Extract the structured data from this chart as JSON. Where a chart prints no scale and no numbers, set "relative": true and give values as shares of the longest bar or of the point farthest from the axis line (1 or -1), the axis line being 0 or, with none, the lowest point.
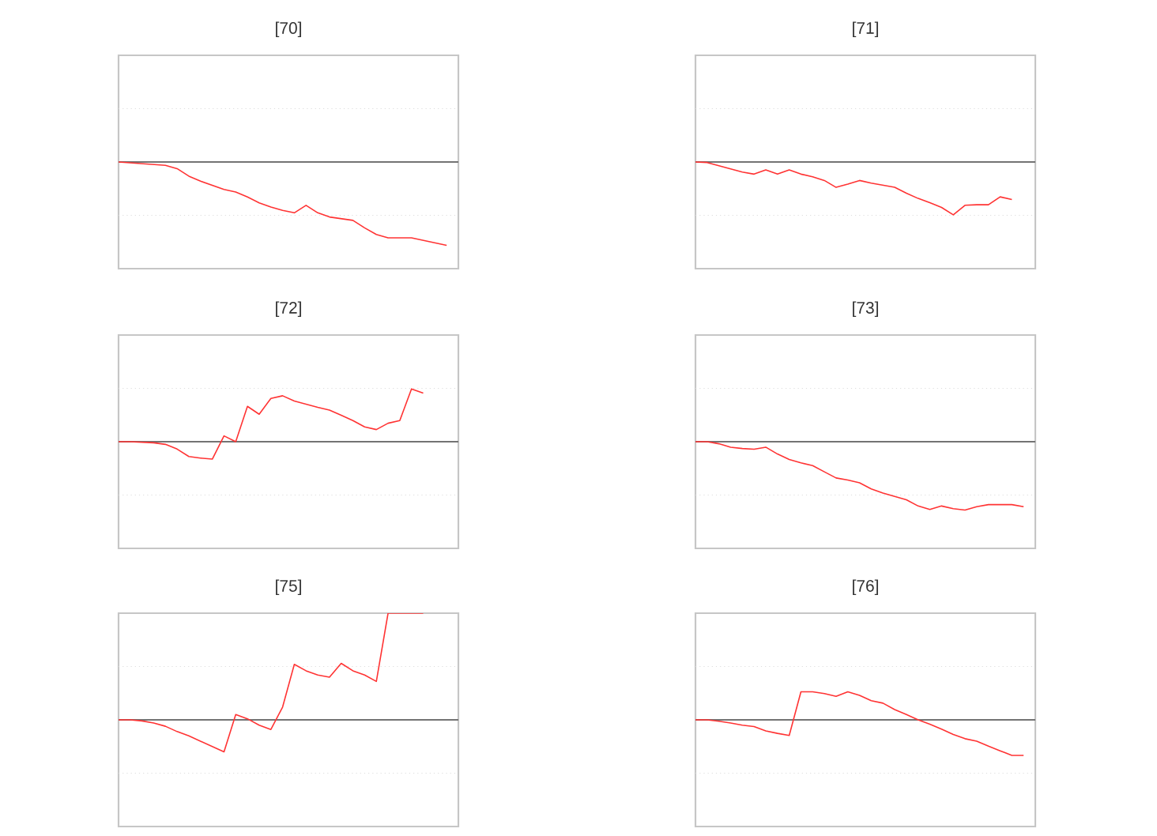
{
  "chart_data": [
    {
      "type": "line",
      "title": "[70]",
      "relative": true,
      "ref_lines": [
        {
          "axis": "y",
          "value": 0.64,
          "color": "#dddddd",
          "line_style": "dotted"
        },
        {
          "axis": "y",
          "value": -0.64,
          "color": "#dddddd",
          "line_style": "dotted"
        }
      ],
      "color": "#ff3333",
      "categories": [
        null,
        null,
        null,
        null,
        null,
        null,
        null,
        null,
        null,
        null,
        null,
        null,
        null,
        null,
        null,
        null,
        null,
        null,
        null,
        null,
        null,
        null,
        null,
        null,
        null,
        null,
        null,
        null,
        null,
        null
      ],
      "values": [
        0,
        -0.01,
        -0.02,
        -0.03,
        -0.04,
        -0.08,
        -0.17,
        -0.23,
        -0.28,
        -0.33,
        -0.36,
        -0.42,
        -0.49,
        -0.54,
        -0.58,
        -0.61,
        -0.52,
        -0.61,
        -0.66,
        -0.68,
        -0.7,
        -0.79,
        -0.87,
        -0.91,
        -0.91,
        -0.91,
        -0.94,
        -0.97,
        -1,
        null
      ]
    },
    {
      "type": "line",
      "title": "[71]",
      "relative": true,
      "ref_lines": [
        {
          "axis": "y",
          "value": 1.01,
          "color": "#dddddd",
          "line_style": "dotted"
        },
        {
          "axis": "y",
          "value": -1.01,
          "color": "#dddddd",
          "line_style": "dotted"
        }
      ],
      "color": "#ff3333",
      "categories": [
        null,
        null,
        null,
        null,
        null,
        null,
        null,
        null,
        null,
        null,
        null,
        null,
        null,
        null,
        null,
        null,
        null,
        null,
        null,
        null,
        null,
        null,
        null,
        null,
        null,
        null,
        null,
        null,
        null,
        null
      ],
      "values": [
        0,
        -0.01,
        -0.07,
        -0.13,
        -0.19,
        -0.23,
        -0.15,
        -0.23,
        -0.15,
        -0.23,
        -0.28,
        -0.35,
        -0.48,
        -0.42,
        -0.35,
        -0.4,
        -0.44,
        -0.48,
        -0.59,
        -0.69,
        -0.77,
        -0.86,
        -1,
        -0.82,
        -0.81,
        -0.81,
        -0.66,
        -0.71,
        null,
        null
      ]
    },
    {
      "type": "line",
      "title": "[72]",
      "relative": true,
      "ref_lines": [
        {
          "axis": "y",
          "value": 1.01,
          "color": "#dddddd",
          "line_style": "dotted"
        },
        {
          "axis": "y",
          "value": -1.01,
          "color": "#dddddd",
          "line_style": "dotted"
        }
      ],
      "color": "#ff3333",
      "categories": [
        null,
        null,
        null,
        null,
        null,
        null,
        null,
        null,
        null,
        null,
        null,
        null,
        null,
        null,
        null,
        null,
        null,
        null,
        null,
        null,
        null,
        null,
        null,
        null,
        null,
        null,
        null,
        null,
        null,
        null
      ],
      "values": [
        0,
        0,
        -0.01,
        -0.02,
        -0.05,
        -0.14,
        -0.28,
        -0.31,
        -0.33,
        0.11,
        0,
        0.67,
        0.52,
        0.82,
        0.87,
        0.77,
        0.71,
        0.65,
        0.6,
        0.5,
        0.4,
        0.28,
        0.23,
        0.35,
        0.4,
        1,
        0.92,
        null,
        null,
        null
      ]
    },
    {
      "type": "line",
      "title": "[73]",
      "relative": true,
      "ref_lines": [
        {
          "axis": "y",
          "value": 0.78,
          "color": "#dddddd",
          "line_style": "dotted"
        },
        {
          "axis": "y",
          "value": -0.78,
          "color": "#dddddd",
          "line_style": "dotted"
        }
      ],
      "color": "#ff3333",
      "categories": [
        null,
        null,
        null,
        null,
        null,
        null,
        null,
        null,
        null,
        null,
        null,
        null,
        null,
        null,
        null,
        null,
        null,
        null,
        null,
        null,
        null,
        null,
        null,
        null,
        null,
        null,
        null,
        null,
        null,
        null
      ],
      "values": [
        0,
        0,
        -0.03,
        -0.08,
        -0.1,
        -0.11,
        -0.08,
        -0.18,
        -0.26,
        -0.31,
        -0.35,
        -0.44,
        -0.53,
        -0.56,
        -0.6,
        -0.69,
        -0.75,
        -0.8,
        -0.85,
        -0.94,
        -0.99,
        -0.94,
        -0.98,
        -1,
        -0.95,
        -0.92,
        -0.92,
        -0.92,
        -0.95,
        null
      ]
    },
    {
      "type": "line",
      "title": "[75]",
      "relative": true,
      "ref_lines": [
        {
          "axis": "y",
          "value": 0.5,
          "color": "#dddddd",
          "line_style": "dotted"
        },
        {
          "axis": "y",
          "value": -0.5,
          "color": "#dddddd",
          "line_style": "dotted"
        }
      ],
      "color": "#ff3333",
      "categories": [
        null,
        null,
        null,
        null,
        null,
        null,
        null,
        null,
        null,
        null,
        null,
        null,
        null,
        null,
        null,
        null,
        null,
        null,
        null,
        null,
        null,
        null,
        null,
        null,
        null,
        null,
        null,
        null,
        null,
        null
      ],
      "values": [
        0,
        0,
        -0.01,
        -0.03,
        -0.06,
        -0.11,
        -0.15,
        -0.2,
        -0.25,
        -0.3,
        0.05,
        0.01,
        -0.05,
        -0.09,
        0.12,
        0.52,
        0.46,
        0.42,
        0.4,
        0.53,
        0.46,
        0.42,
        0.36,
        1,
        1,
        1,
        1,
        null,
        null,
        null
      ]
    },
    {
      "type": "line",
      "title": "[76]",
      "relative": true,
      "ref_lines": [
        {
          "axis": "y",
          "value": 1.5,
          "color": "#dddddd",
          "line_style": "dotted"
        },
        {
          "axis": "y",
          "value": -1.5,
          "color": "#dddddd",
          "line_style": "dotted"
        }
      ],
      "color": "#ff3333",
      "categories": [
        null,
        null,
        null,
        null,
        null,
        null,
        null,
        null,
        null,
        null,
        null,
        null,
        null,
        null,
        null,
        null,
        null,
        null,
        null,
        null,
        null,
        null,
        null,
        null,
        null,
        null,
        null,
        null,
        null,
        null
      ],
      "values": [
        0,
        0,
        -0.04,
        -0.09,
        -0.15,
        -0.19,
        -0.31,
        -0.38,
        -0.44,
        0.79,
        0.79,
        0.74,
        0.66,
        0.79,
        0.69,
        0.54,
        0.47,
        0.29,
        0.15,
        0,
        -0.12,
        -0.26,
        -0.41,
        -0.53,
        -0.6,
        -0.74,
        -0.87,
        -1,
        -1,
        null
      ]
    }
  ]
}
